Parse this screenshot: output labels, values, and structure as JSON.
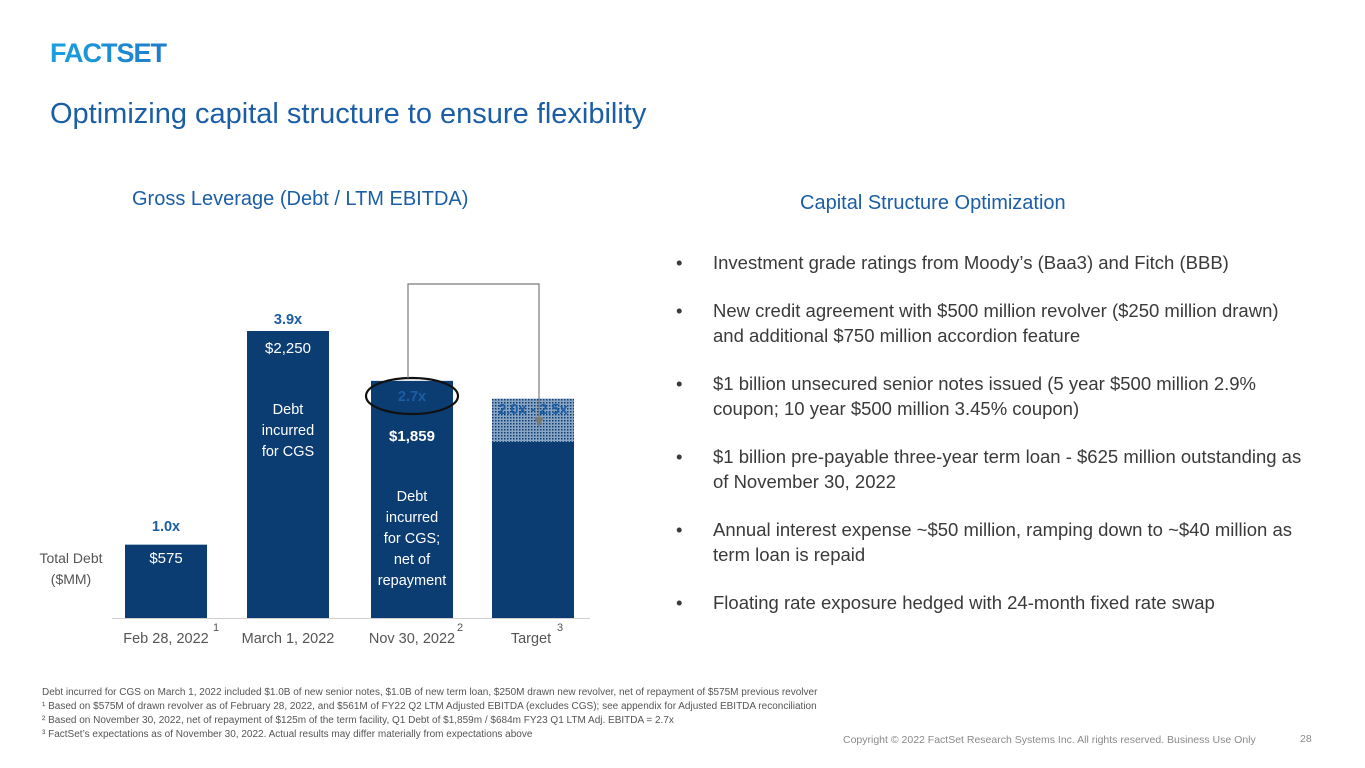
{
  "brand": {
    "logo_text": "FACTSET",
    "color": "#1b8dd6"
  },
  "slide": {
    "title": "Optimizing capital structure to ensure flexibility",
    "chart_title": "Gross Leverage (Debt / LTM EBITDA)",
    "right_title": "Capital Structure Optimization",
    "page_number": "28",
    "copyright": "Copyright © 2022 FactSet Research Systems Inc. All rights reserved. Business Use Only"
  },
  "chart_data": {
    "type": "bar",
    "title": "Gross Leverage (Debt / LTM EBITDA)",
    "ylabel": "Total Debt ($MM)",
    "categories": [
      "Feb 28, 2022",
      "March 1, 2022",
      "Nov 30, 2022",
      "Target"
    ],
    "category_footnotes": [
      "1",
      "",
      "2",
      "3"
    ],
    "values": [
      575,
      2250,
      1859,
      null
    ],
    "target_range_debt": [
      1380,
      1720
    ],
    "value_labels": [
      "$575",
      "$2,250",
      "$1,859",
      ""
    ],
    "leverage_labels": [
      "1.0x",
      "3.9x",
      "2.7x",
      "2.0x - 2.5x"
    ],
    "inner_labels": [
      "",
      "Debt incurred for CGS",
      "Debt incurred for CGS; net of repayment",
      ""
    ],
    "highlighted_leverage": "2.7x",
    "ylim": [
      0,
      2250
    ],
    "bar_color": "#0b3d73",
    "accent_color": "#1b5ea6"
  },
  "bullets": [
    "Investment grade ratings from Moody’s (Baa3) and Fitch (BBB)",
    "New credit agreement with $500 million revolver ($250 million drawn) and additional $750 million accordion feature",
    "$1 billion unsecured senior notes issued (5 year $500 million 2.9% coupon; 10 year $500 million 3.45% coupon)",
    "$1 billion pre-payable three-year term loan - $625 million outstanding as of November 30, 2022",
    "Annual interest expense ~$50 million, ramping down to ~$40 million as term loan is repaid",
    "Floating rate exposure hedged with 24-month fixed rate swap"
  ],
  "footnotes": [
    "Debt incurred for CGS on March 1, 2022 included $1.0B of new senior notes, $1.0B of new term loan, $250M drawn new revolver, net of repayment of $575M previous revolver",
    "¹ Based on $575M of drawn revolver as of February 28, 2022, and $561M of FY22 Q2 LTM Adjusted EBITDA (excludes CGS); see appendix for Adjusted EBITDA reconciliation",
    "² Based on November 30, 2022, net of repayment of $125m of the term facility, Q1 Debt of $1,859m / $684m FY23 Q1 LTM Adj. EBITDA = 2.7x",
    "³ FactSet’s expectations as of November 30, 2022. Actual results may differ materially from expectations above"
  ]
}
